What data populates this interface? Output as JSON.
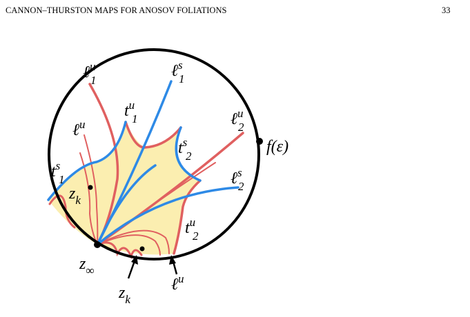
{
  "header": {
    "title": "CANNON–THURSTON MAPS FOR ANOSOV FOLIATIONS",
    "page": "33"
  },
  "figure": {
    "labels": [
      {
        "base": "ℓ",
        "sup": "u",
        "sub": "1"
      },
      {
        "base": "ℓ",
        "sup": "s",
        "sub": "1"
      },
      {
        "base": "t",
        "sup": "u",
        "sub": "1"
      },
      {
        "base": "ℓ",
        "sup": "u"
      },
      {
        "base": "ℓ",
        "sup": "u",
        "sub": "2"
      },
      {
        "base": "t",
        "sup": "s",
        "sub": "2"
      },
      {
        "base": "f(ε)"
      },
      {
        "base": "t",
        "sup": "s",
        "sub": "1"
      },
      {
        "base": "ℓ",
        "sup": "s",
        "sub": "2"
      },
      {
        "base": "z",
        "sub": "k"
      },
      {
        "base": "t",
        "sup": "u",
        "sub": "2"
      },
      {
        "base": "z",
        "sub": "∞"
      },
      {
        "base": "z",
        "sub": "k"
      },
      {
        "base": "ℓ",
        "sup": "u"
      }
    ]
  }
}
